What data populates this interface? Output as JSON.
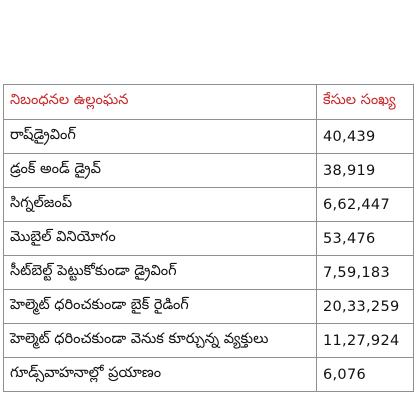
{
  "table": {
    "headers": {
      "violation": "నిబంధనల ఉల్లంఘన",
      "count": "కేసుల సంఖ్య"
    },
    "rows": [
      {
        "violation": "రాష్‌డ్రైవింగ్",
        "count": "40,439"
      },
      {
        "violation": "డ్రంక్ అండ్ డ్రైవ్",
        "count": "38,919"
      },
      {
        "violation": "సిగ్నల్‌జంప్",
        "count": "6,62,447"
      },
      {
        "violation": "మొబైల్ వినియోగం",
        "count": "53,476"
      },
      {
        "violation": "సీట్‌బెల్ట్ పెట్టుకోకుండా డ్రైవింగ్",
        "count": "7,59,183"
      },
      {
        "violation": "హెల్మెట్ ధరించకుండా బైక్ రైడింగ్",
        "count": "20,33,259"
      },
      {
        "violation": "హెల్మెట్ ధరించకుండా వెనుక కూర్చున్న వ్యక్తులు",
        "count": "11,27,924"
      },
      {
        "violation": "గూడ్స్‌వాహనాల్లో ప్రయాణం",
        "count": "6,076"
      }
    ]
  },
  "colors": {
    "header_text": "#c8282a",
    "body_text": "#111111",
    "border": "#8f8f8f"
  }
}
